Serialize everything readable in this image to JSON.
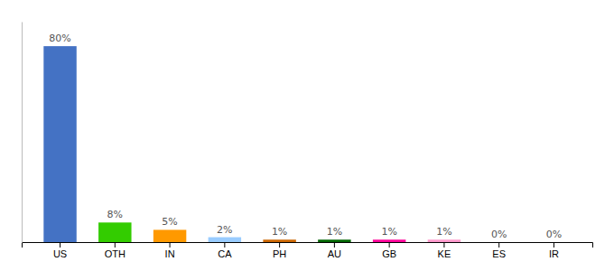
{
  "chart_data": {
    "type": "bar",
    "categories": [
      "US",
      "OTH",
      "IN",
      "CA",
      "PH",
      "AU",
      "GB",
      "KE",
      "ES",
      "IR"
    ],
    "values": [
      80,
      8,
      5,
      2,
      1,
      1,
      1,
      1,
      0,
      0
    ],
    "value_labels": [
      "80%",
      "8%",
      "5%",
      "2%",
      "1%",
      "1%",
      "1%",
      "1%",
      "0%",
      "0%"
    ],
    "colors": [
      "#4472c4",
      "#33cc00",
      "#ff9900",
      "#99ccff",
      "#cc6600",
      "#006600",
      "#ff0099",
      "#ff99cc",
      "#ffffff",
      "#ffffff"
    ],
    "ylim": [
      0,
      90
    ],
    "data_labels": true,
    "tick_labels": "x",
    "grid": false
  }
}
